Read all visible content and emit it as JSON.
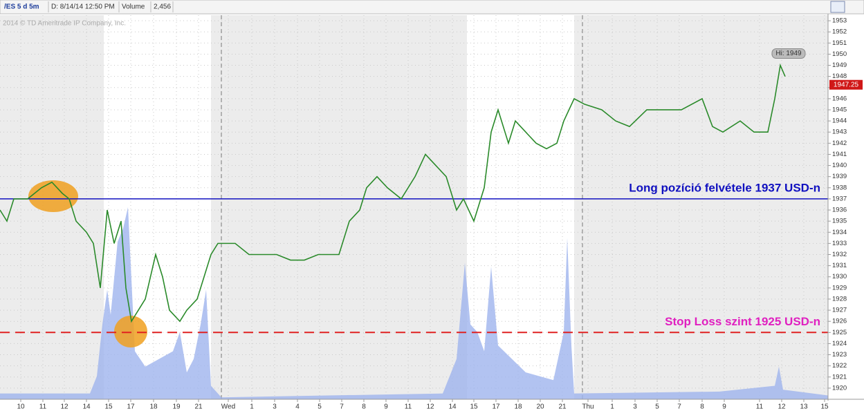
{
  "header": {
    "symbol": "/ES 5 d 5m",
    "date": "D: 8/14/14 12:50 PM",
    "volume_label": "Volume",
    "volume_value": "2,456"
  },
  "watermark": "2014 © TD Ameritrade IP Company, Inc.",
  "chart_data": {
    "type": "line",
    "annotations": {
      "long": "Long pozíció felvétele 1937 USD-n",
      "stop": "Stop Loss szint 1925 USD-n",
      "high": "Hi: 1949"
    },
    "long_level": 1937,
    "stop_level": 1925,
    "last_price": 1947.25,
    "high_price": 1949,
    "x": [
      0,
      10,
      20,
      40,
      60,
      75,
      90,
      100,
      110,
      125,
      135,
      145,
      155,
      165,
      175,
      182,
      190,
      200,
      210,
      225,
      235,
      245,
      260,
      270,
      285,
      295,
      305,
      315,
      340,
      360,
      380,
      400,
      420,
      440,
      460,
      490,
      505,
      520,
      530,
      545,
      560,
      580,
      600,
      615,
      630,
      645,
      660,
      670,
      685,
      700,
      710,
      720,
      735,
      745,
      760,
      775,
      790,
      805,
      815,
      830,
      845,
      870,
      890,
      910,
      935,
      960,
      985,
      1015,
      1030,
      1045,
      1070,
      1090,
      1110,
      1120,
      1128,
      1135
    ],
    "series": [
      {
        "color": "#2a8a2a",
        "values": [
          1936,
          1935,
          1937,
          1937,
          1938,
          1938.5,
          1937.5,
          1937,
          1935,
          1934,
          1933,
          1929,
          1936,
          1933,
          1935,
          1929,
          1926,
          1927,
          1928,
          1932,
          1930,
          1927,
          1926,
          1927,
          1928,
          1930,
          1932,
          1933,
          1933,
          1932,
          1932,
          1932,
          1931.5,
          1931.5,
          1932,
          1932,
          1935,
          1936,
          1938,
          1939,
          1938,
          1937,
          1939,
          1941,
          1940,
          1939,
          1936,
          1937,
          1935,
          1938,
          1943,
          1945,
          1942,
          1944,
          1943,
          1942,
          1941.5,
          1942,
          1944,
          1946,
          1945.5,
          1945,
          1944,
          1943.5,
          1945,
          1945,
          1945,
          1946,
          1943.5,
          1943,
          1944,
          1943,
          1943,
          1946,
          1949,
          1948
        ]
      }
    ],
    "volume": {
      "color": "#9fb4ee",
      "axis": "y2",
      "x": [
        0,
        130,
        140,
        148,
        155,
        160,
        170,
        178,
        185,
        195,
        210,
        230,
        250,
        260,
        270,
        280,
        290,
        298,
        305,
        320,
        640,
        660,
        672,
        680,
        690,
        700,
        710,
        720,
        740,
        760,
        800,
        815,
        820,
        826,
        830,
        1040,
        1120,
        1126,
        1132,
        1197
      ],
      "values": [
        3,
        3,
        12,
        39,
        57,
        44,
        82,
        89,
        100,
        25,
        17,
        21,
        25,
        35,
        14,
        21,
        39,
        57,
        7,
        1,
        3,
        21,
        71,
        39,
        35,
        25,
        69,
        28,
        21,
        14,
        10,
        35,
        84,
        28,
        3,
        4,
        7,
        17,
        5,
        2
      ]
    },
    "xlim": [
      0,
      1197
    ],
    "ylim": [
      1919,
      1953.5
    ],
    "y2lim": [
      0,
      200
    ],
    "yticks": [
      1920,
      1921,
      1922,
      1923,
      1924,
      1925,
      1926,
      1927,
      1928,
      1929,
      1930,
      1931,
      1932,
      1933,
      1934,
      1935,
      1936,
      1937,
      1938,
      1939,
      1940,
      1941,
      1942,
      1943,
      1944,
      1945,
      1946,
      1947,
      1948,
      1949,
      1950,
      1951,
      1952,
      1953
    ],
    "xticks": [
      {
        "value": 30,
        "label": "10"
      },
      {
        "value": 62,
        "label": "11"
      },
      {
        "value": 93,
        "label": "12"
      },
      {
        "value": 125,
        "label": "14"
      },
      {
        "value": 157,
        "label": "15"
      },
      {
        "value": 189,
        "label": "17"
      },
      {
        "value": 222,
        "label": "18"
      },
      {
        "value": 255,
        "label": "19"
      },
      {
        "value": 287,
        "label": "21"
      },
      {
        "value": 330,
        "label": "Wed"
      },
      {
        "value": 364,
        "label": "1"
      },
      {
        "value": 397,
        "label": "3"
      },
      {
        "value": 430,
        "label": "4"
      },
      {
        "value": 462,
        "label": "5"
      },
      {
        "value": 494,
        "label": "7"
      },
      {
        "value": 526,
        "label": "8"
      },
      {
        "value": 558,
        "label": "9"
      },
      {
        "value": 590,
        "label": "11"
      },
      {
        "value": 622,
        "label": "12"
      },
      {
        "value": 654,
        "label": "14"
      },
      {
        "value": 685,
        "label": "15"
      },
      {
        "value": 717,
        "label": "17"
      },
      {
        "value": 749,
        "label": "18"
      },
      {
        "value": 781,
        "label": "20"
      },
      {
        "value": 813,
        "label": "21"
      },
      {
        "value": 850,
        "label": "Thu"
      },
      {
        "value": 885,
        "label": "1"
      },
      {
        "value": 918,
        "label": "3"
      },
      {
        "value": 950,
        "label": "5"
      },
      {
        "value": 982,
        "label": "7"
      },
      {
        "value": 1015,
        "label": "8"
      },
      {
        "value": 1047,
        "label": "9"
      },
      {
        "value": 1098,
        "label": "11"
      },
      {
        "value": 1130,
        "label": "12"
      },
      {
        "value": 1162,
        "label": "13"
      },
      {
        "value": 1192,
        "label": "15"
      }
    ],
    "grid": true
  }
}
